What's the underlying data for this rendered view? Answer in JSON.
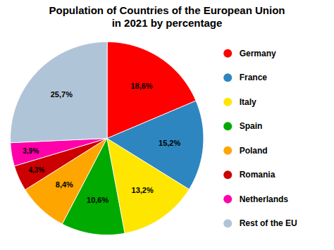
{
  "chart_data": {
    "type": "pie",
    "title": "Population of Countries of the European Union\nin 2021 by percentage",
    "categories": [
      "Germany",
      "France",
      "Italy",
      "Spain",
      "Poland",
      "Romania",
      "Netherlands",
      "Rest of the EU"
    ],
    "values": [
      18.6,
      15.2,
      13.2,
      10.6,
      8.4,
      4.3,
      3.9,
      25.7
    ],
    "value_labels": [
      "18,6%",
      "15,2%",
      "13,2%",
      "10,6%",
      "8,4%",
      "4,3%",
      "3,9%",
      "25,7%"
    ],
    "colors": [
      "#FF0000",
      "#2E86C1",
      "#FFE600",
      "#00AA00",
      "#FFA500",
      "#CC0000",
      "#FF00AA",
      "#B0C4D8"
    ],
    "data_labels": true,
    "legend": "right"
  }
}
